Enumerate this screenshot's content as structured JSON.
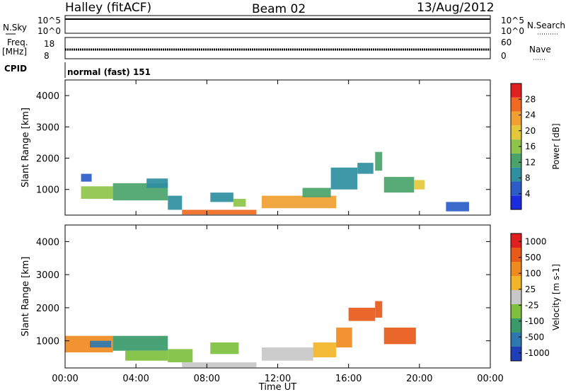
{
  "header": {
    "left_title": "Halley (fitACF)",
    "center_title": "Beam 02",
    "right_title": "13/Aug/2012"
  },
  "status_panel": {
    "nsky_label": "N.Sky",
    "nsearch_label": "N.Search",
    "freq_label_line1": "Freq.",
    "freq_label_line2": "[MHz]",
    "nave_label": "Nave",
    "cpid_label": "CPID",
    "mode_text": "normal (fast) 151",
    "nsky_ticks": [
      "10^5",
      "10^0"
    ],
    "nsearch_ticks": [
      "10^5",
      "10^0"
    ],
    "freq_ticks": [
      "18",
      "8"
    ],
    "nave_ticks": [
      "60",
      "0"
    ]
  },
  "chart_data": [
    {
      "type": "heatmap",
      "name": "power",
      "xlabel": "",
      "ylabel": "Slant Range [km]",
      "xlim": [
        0,
        24
      ],
      "ylim": [
        180,
        4500
      ],
      "yticks": [
        1000,
        2000,
        3000,
        4000
      ],
      "xticks": [
        0,
        4,
        8,
        12,
        16,
        20,
        24
      ],
      "colorbar": {
        "label": "Power [dB]",
        "range": [
          0,
          32
        ],
        "ticks": [
          "4",
          "8",
          "12",
          "16",
          "20",
          "24",
          "28"
        ],
        "colors": [
          "#1b2be0",
          "#2b5cc8",
          "#2f8fa0",
          "#4aa36a",
          "#8ec44a",
          "#e5c83a",
          "#f0a030",
          "#ef6a20",
          "#e02020"
        ]
      },
      "regions": [
        {
          "t": [
            0.9,
            2.7
          ],
          "r": [
            700,
            1100
          ],
          "level": 16
        },
        {
          "t": [
            0.9,
            1.5
          ],
          "r": [
            1250,
            1500
          ],
          "level": 6
        },
        {
          "t": [
            2.7,
            5.8
          ],
          "r": [
            650,
            1200
          ],
          "level": 14
        },
        {
          "t": [
            4.6,
            5.8
          ],
          "r": [
            1050,
            1350
          ],
          "level": 10
        },
        {
          "t": [
            5.8,
            6.6
          ],
          "r": [
            350,
            800
          ],
          "level": 8
        },
        {
          "t": [
            6.6,
            10.8
          ],
          "r": [
            200,
            350
          ],
          "level": 28
        },
        {
          "t": [
            8.2,
            9.5
          ],
          "r": [
            600,
            900
          ],
          "level": 8
        },
        {
          "t": [
            9.5,
            10.2
          ],
          "r": [
            450,
            700
          ],
          "level": 16
        },
        {
          "t": [
            11.1,
            15.3
          ],
          "r": [
            400,
            800
          ],
          "level": 24
        },
        {
          "t": [
            13.4,
            15.0
          ],
          "r": [
            750,
            1050
          ],
          "level": 14
        },
        {
          "t": [
            15.0,
            16.5
          ],
          "r": [
            1000,
            1700
          ],
          "level": 10
        },
        {
          "t": [
            16.5,
            17.4
          ],
          "r": [
            1500,
            1850
          ],
          "level": 8
        },
        {
          "t": [
            17.5,
            17.9
          ],
          "r": [
            1600,
            2200
          ],
          "level": 12
        },
        {
          "t": [
            18.0,
            19.7
          ],
          "r": [
            900,
            1400
          ],
          "level": 12
        },
        {
          "t": [
            19.7,
            20.3
          ],
          "r": [
            1000,
            1300
          ],
          "level": 20
        },
        {
          "t": [
            21.5,
            22.8
          ],
          "r": [
            300,
            600
          ],
          "level": 6
        }
      ]
    },
    {
      "type": "heatmap",
      "name": "velocity",
      "xlabel": "Time UT",
      "ylabel": "Slant Range [km]",
      "xlim": [
        0,
        24
      ],
      "ylim": [
        180,
        4500
      ],
      "yticks": [
        1000,
        2000,
        3000,
        4000
      ],
      "xticks": [
        0,
        4,
        8,
        12,
        16,
        20,
        24
      ],
      "xticklabels": [
        "00:00",
        "04:00",
        "08:00",
        "12:00",
        "16:00",
        "20:00",
        "00:00"
      ],
      "colorbar": {
        "label": "Velocity [m s-1]",
        "ticks": [
          "1000",
          "500",
          "100",
          "25",
          "-25",
          "-100",
          "-500",
          "-1000"
        ],
        "colors": [
          "#1f3fb8",
          "#2e77b0",
          "#3a9a6a",
          "#7ec03e",
          "#c8c8c8",
          "#f3b528",
          "#ef8a1e",
          "#e85a1a",
          "#e02020"
        ]
      },
      "regions": [
        {
          "t": [
            0.0,
            2.7
          ],
          "r": [
            650,
            1150
          ],
          "level": 6
        },
        {
          "t": [
            2.7,
            5.8
          ],
          "r": [
            700,
            1150
          ],
          "level": 2
        },
        {
          "t": [
            3.4,
            5.8
          ],
          "r": [
            400,
            700
          ],
          "level": 3
        },
        {
          "t": [
            5.8,
            7.2
          ],
          "r": [
            350,
            750
          ],
          "level": 3
        },
        {
          "t": [
            6.6,
            10.8
          ],
          "r": [
            200,
            350
          ],
          "level": 4
        },
        {
          "t": [
            8.2,
            9.8
          ],
          "r": [
            600,
            950
          ],
          "level": 3
        },
        {
          "t": [
            11.1,
            14.0
          ],
          "r": [
            400,
            800
          ],
          "level": 4
        },
        {
          "t": [
            14.0,
            15.3
          ],
          "r": [
            500,
            950
          ],
          "level": 5
        },
        {
          "t": [
            15.3,
            16.2
          ],
          "r": [
            800,
            1400
          ],
          "level": 6
        },
        {
          "t": [
            16.0,
            17.5
          ],
          "r": [
            1600,
            2000
          ],
          "level": 7
        },
        {
          "t": [
            17.5,
            17.9
          ],
          "r": [
            1700,
            2200
          ],
          "level": 7
        },
        {
          "t": [
            18.0,
            19.8
          ],
          "r": [
            900,
            1400
          ],
          "level": 7
        },
        {
          "t": [
            1.4,
            2.6
          ],
          "r": [
            800,
            1000
          ],
          "level": 1
        }
      ]
    }
  ]
}
